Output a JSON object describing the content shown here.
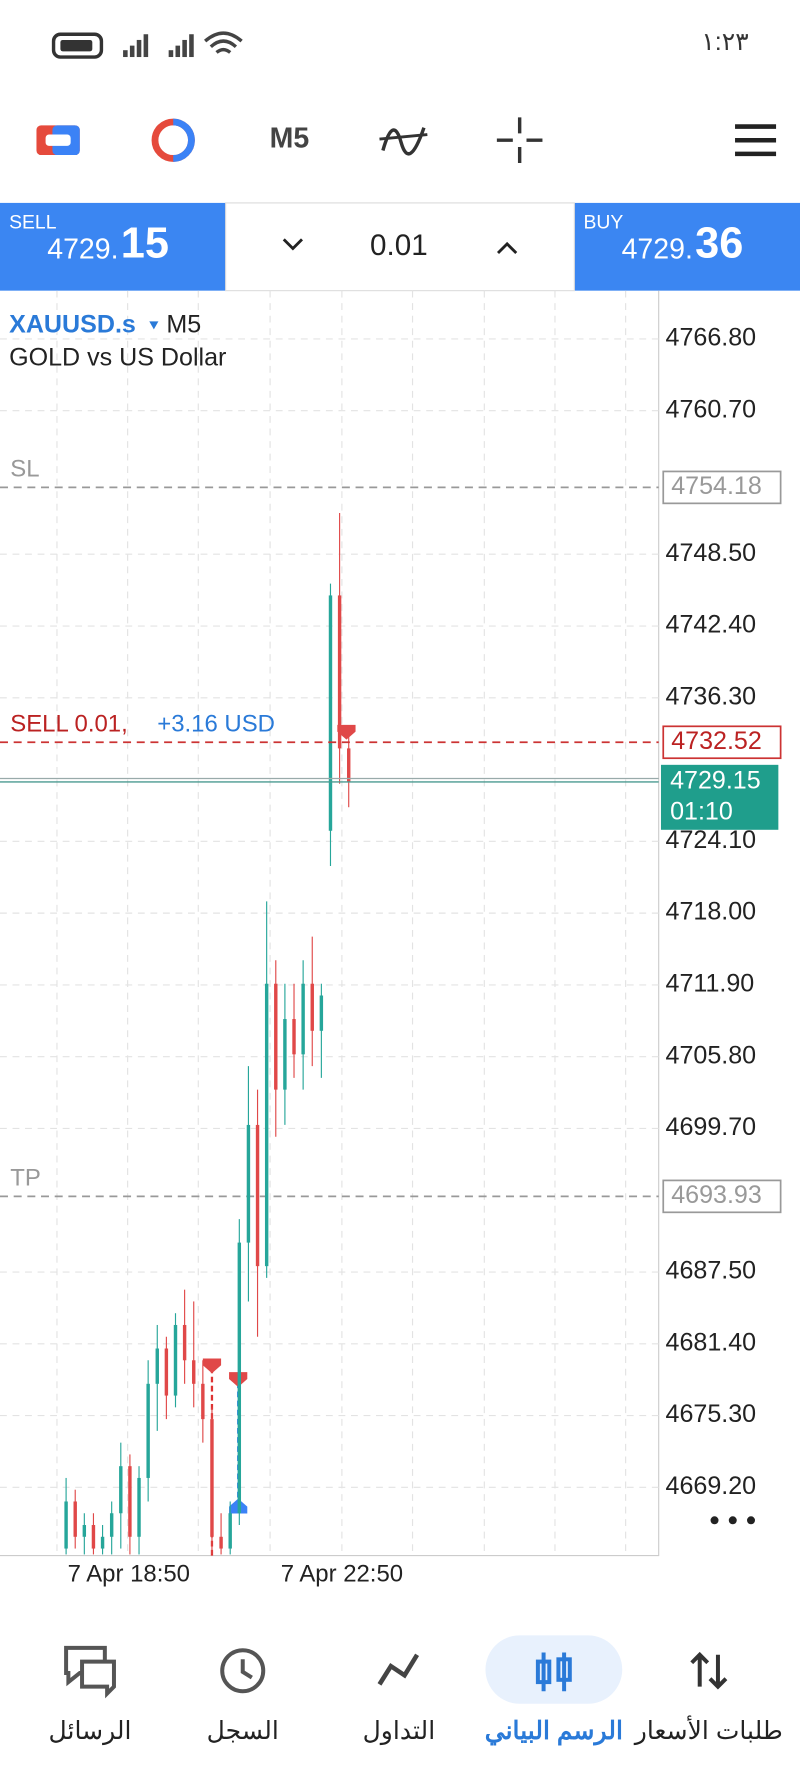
{
  "status_bar": {
    "time": "١:٢٣"
  },
  "toolbar": {
    "timeframe": "M5"
  },
  "trade_panel": {
    "sell_label": "SELL",
    "sell_price_main": "4729.",
    "sell_price_big": "15",
    "volume": "0.01",
    "buy_label": "BUY",
    "buy_price_main": "4729.",
    "buy_price_big": "36"
  },
  "chart": {
    "symbol": "XAUUSD.s",
    "timeframe": "M5",
    "description": "GOLD vs US Dollar",
    "ylim": [
      4663.4,
      4770.9
    ],
    "yticks": [
      {
        "value": 4766.8,
        "label": "4766.80"
      },
      {
        "value": 4760.7,
        "label": "4760.70"
      },
      {
        "value": 4748.5,
        "label": "4748.50"
      },
      {
        "value": 4742.4,
        "label": "4742.40"
      },
      {
        "value": 4736.3,
        "label": "4736.30"
      },
      {
        "value": 4724.1,
        "label": "4724.10"
      },
      {
        "value": 4718,
        "label": "4718.00"
      },
      {
        "value": 4711.9,
        "label": "4711.90"
      },
      {
        "value": 4705.8,
        "label": "4705.80"
      },
      {
        "value": 4699.7,
        "label": "4699.70"
      },
      {
        "value": 4687.5,
        "label": "4687.50"
      },
      {
        "value": 4681.4,
        "label": "4681.40"
      },
      {
        "value": 4675.3,
        "label": "4675.30"
      },
      {
        "value": 4669.2,
        "label": "4669.20"
      }
    ],
    "xlabels": [
      "7 Apr 18:50",
      "7 Apr 22:50"
    ],
    "sl": {
      "label": "SL",
      "value": 4754.18
    },
    "tp": {
      "label": "TP",
      "value": 4693.93
    },
    "position": {
      "label": "SELL 0.01,",
      "profit": "+3.16 USD",
      "value": 4732.52
    },
    "bid": {
      "value": 4729.15,
      "countdown": "01:10"
    },
    "candles": [
      [
        4664,
        4670,
        4663.5,
        4668
      ],
      [
        4668,
        4669,
        4664,
        4665
      ],
      [
        4665,
        4667,
        4663.5,
        4666
      ],
      [
        4666,
        4667,
        4663.5,
        4664
      ],
      [
        4664,
        4666,
        4663.5,
        4665
      ],
      [
        4665,
        4668,
        4663.5,
        4667
      ],
      [
        4667,
        4673,
        4664,
        4671
      ],
      [
        4671,
        4672,
        4663.5,
        4665
      ],
      [
        4665,
        4671,
        4663.5,
        4670
      ],
      [
        4670,
        4680,
        4668,
        4678
      ],
      [
        4678,
        4683,
        4674,
        4681
      ],
      [
        4681,
        4682,
        4675,
        4677
      ],
      [
        4677,
        4684,
        4676,
        4683
      ],
      [
        4683,
        4686,
        4678,
        4680
      ],
      [
        4680,
        4685,
        4676,
        4678
      ],
      [
        4678,
        4680,
        4673,
        4675
      ],
      [
        4675,
        4676,
        4663.5,
        4665
      ],
      [
        4665,
        4667,
        4663.5,
        4664
      ],
      [
        4664,
        4668,
        4663.5,
        4667
      ],
      [
        4667,
        4692,
        4666,
        4690
      ],
      [
        4690,
        4705,
        4685,
        4700
      ],
      [
        4700,
        4703,
        4682,
        4688
      ],
      [
        4688,
        4719,
        4687,
        4712
      ],
      [
        4712,
        4714,
        4699,
        4703
      ],
      [
        4703,
        4712,
        4700,
        4709
      ],
      [
        4709,
        4712,
        4704,
        4706
      ],
      [
        4706,
        4714,
        4703,
        4712
      ],
      [
        4712,
        4716,
        4705,
        4708
      ],
      [
        4708,
        4712,
        4704,
        4711
      ],
      [
        4725,
        4746,
        4722,
        4745
      ],
      [
        4745,
        4752,
        4729,
        4732
      ],
      [
        4732,
        4733,
        4727,
        4729.15
      ]
    ]
  },
  "bottom_nav": [
    "الرسائل",
    "السجل",
    "التداول",
    "الرسم البياني",
    "طلبات الأسعار"
  ]
}
